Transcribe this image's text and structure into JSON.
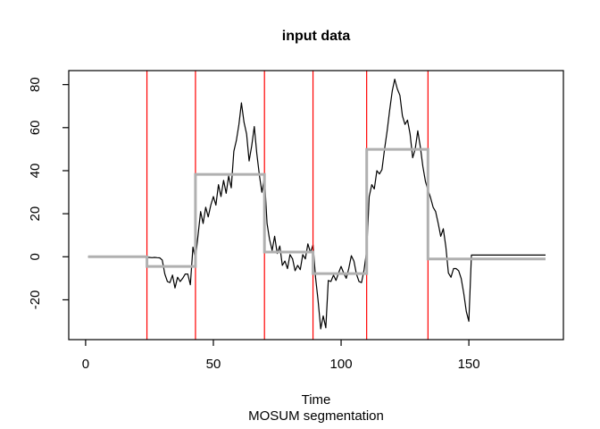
{
  "chart_data": {
    "type": "line",
    "title": "input data",
    "xlabel": "Time",
    "sub_label": "MOSUM segmentation",
    "x_ticks": [
      0,
      50,
      100,
      150
    ],
    "y_ticks": [
      -20,
      0,
      20,
      40,
      60,
      80
    ],
    "xlim": [
      -6.6,
      187
    ],
    "ylim": [
      -38.5,
      86.5
    ],
    "x_start": 1,
    "series_name": "input data (black line)",
    "series_color": "#000000",
    "series_values": [
      0,
      0,
      0,
      0,
      0,
      0,
      0,
      0,
      0,
      0,
      0,
      0,
      0,
      0,
      0,
      0,
      0,
      0,
      0,
      0,
      0,
      0,
      0,
      -0.3,
      -0.3,
      -0.4,
      -0.3,
      -0.4,
      -0.5,
      -1.5,
      -8,
      -11.5,
      -12,
      -8.5,
      -14.5,
      -9.5,
      -11.5,
      -10,
      -8,
      -8,
      -13,
      4.5,
      -1,
      10,
      21,
      15.5,
      23,
      18.5,
      24,
      28,
      24,
      33.5,
      28,
      35.5,
      29.5,
      37.5,
      32,
      49,
      54,
      61.5,
      71.5,
      62.5,
      57,
      44.5,
      51.5,
      60.5,
      48,
      38,
      30,
      37,
      15.5,
      8,
      3,
      9.5,
      1.5,
      5,
      -4,
      -2,
      -5.5,
      1,
      -1,
      -6.5,
      -4,
      -6,
      1,
      -1,
      6,
      2,
      5.5,
      -9.5,
      -20.5,
      -33.5,
      -27.5,
      -33,
      -11,
      -11.5,
      -8.5,
      -11,
      -7.5,
      -4.5,
      -7.5,
      -10,
      -5.5,
      0.5,
      -2,
      -8,
      -11.5,
      -12,
      -6,
      3,
      28,
      33.5,
      31.5,
      40,
      38.5,
      40.5,
      50,
      58.5,
      68,
      77,
      82.5,
      78,
      75,
      65.5,
      61.5,
      63.5,
      57,
      46,
      50,
      58.5,
      51,
      42,
      35,
      31,
      27.5,
      23,
      21,
      15.5,
      9.5,
      13,
      4.5,
      -7.5,
      -9.5,
      -5.5,
      -5.5,
      -6.5,
      -10,
      -17,
      -25.5,
      -30,
      0.8,
      0.8,
      0.8,
      0.8,
      0.8,
      0.8,
      0.8,
      0.8,
      0.8,
      0.8,
      0.8,
      0.8,
      0.8,
      0.8,
      0.8,
      0.8,
      0.8,
      0.8,
      0.8,
      0.8,
      0.8,
      0.8,
      0.8,
      0.8,
      0.8,
      0.8,
      0.8,
      0.8,
      0.8,
      0.8
    ],
    "segment_means_name": "MOSUM segment means (grey step line)",
    "segment_color": "#b0b0b0",
    "segment_means": [
      {
        "from": 1,
        "to": 24,
        "mean": 0
      },
      {
        "from": 24,
        "to": 43,
        "mean": -4.5
      },
      {
        "from": 43,
        "to": 70,
        "mean": 38.3
      },
      {
        "from": 70,
        "to": 89,
        "mean": 2.2
      },
      {
        "from": 89,
        "to": 110,
        "mean": -7.8
      },
      {
        "from": 110,
        "to": 134,
        "mean": 49.9
      },
      {
        "from": 134,
        "to": 180,
        "mean": -1
      }
    ],
    "changepoints": {
      "name": "detected change points (red vertical lines)",
      "color": "#ff0000",
      "times": [
        24,
        43,
        70,
        89,
        110,
        134
      ]
    },
    "legend_position": "none",
    "grid": false
  }
}
